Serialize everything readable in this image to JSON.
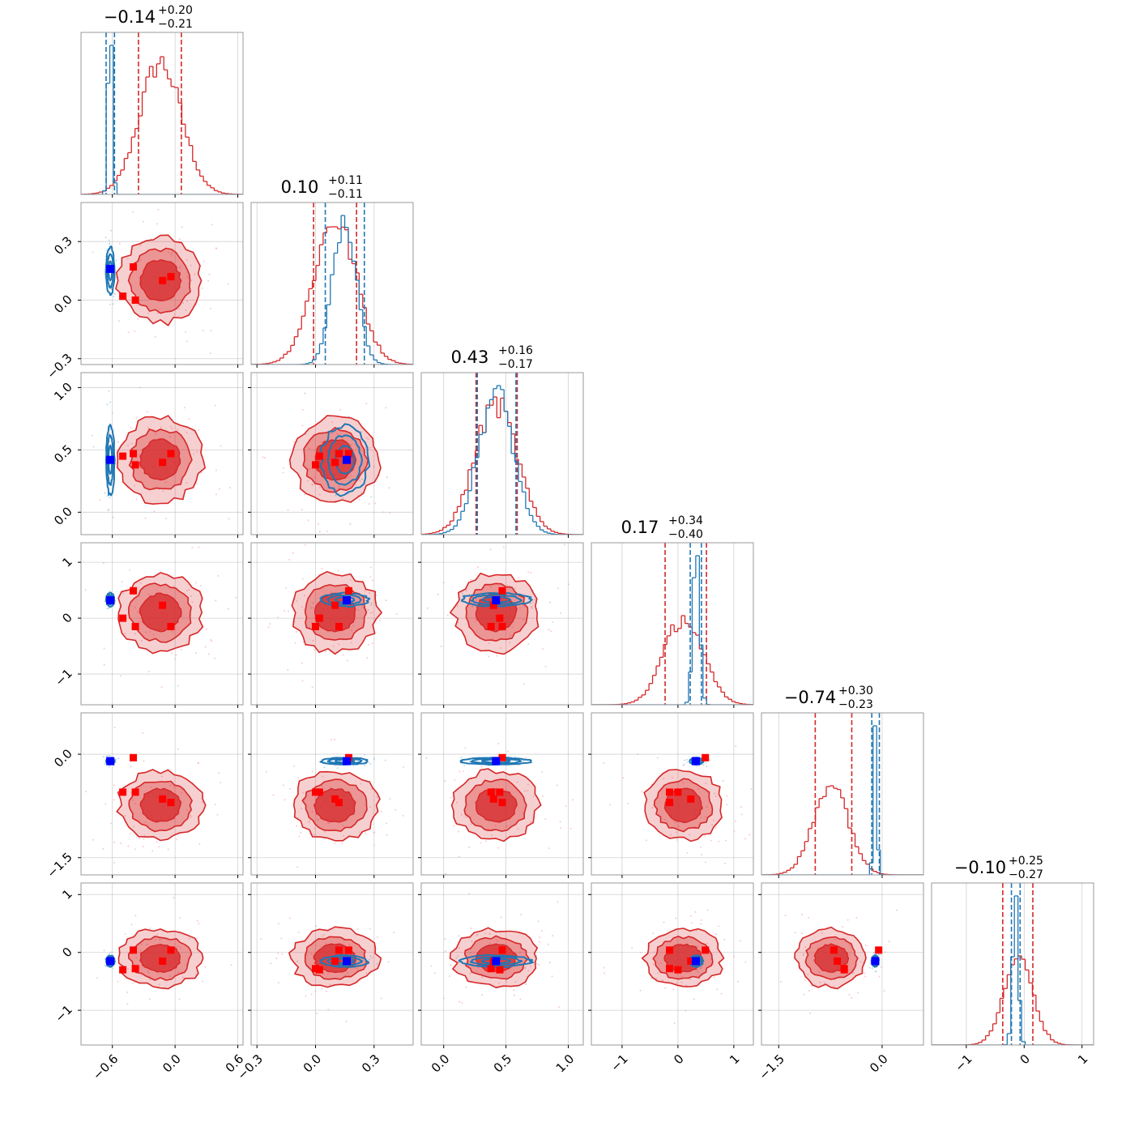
{
  "chart_data": {
    "type": "corner",
    "title": "",
    "n_params": 6,
    "grid": true,
    "colors": {
      "blue": "#1f77b4",
      "red": "#d62728",
      "marker_blue": "#0000ff",
      "marker_red": "#ff0000"
    },
    "diagonal_titles": [
      {
        "median": "−0.14",
        "plus": "+0.20",
        "minus": "−0.21"
      },
      {
        "median": "0.10",
        "plus": "+0.11",
        "minus": "−0.11"
      },
      {
        "median": "0.43",
        "plus": "+0.16",
        "minus": "−0.17"
      },
      {
        "median": "0.17",
        "plus": "+0.34",
        "minus": "−0.40"
      },
      {
        "median": "−0.74",
        "plus": "+0.30",
        "minus": "−0.23"
      },
      {
        "median": "−0.10",
        "plus": "+0.25",
        "minus": "−0.27"
      }
    ],
    "axes": [
      {
        "range": [
          -0.9,
          0.65
        ],
        "ticks": [
          -0.6,
          0.0,
          0.6
        ],
        "tick_labels": [
          "−0.6",
          "0.0",
          "0.6"
        ]
      },
      {
        "range": [
          -0.33,
          0.5
        ],
        "ticks": [
          -0.3,
          0.0,
          0.3
        ],
        "tick_labels": [
          "−0.3",
          "0.0",
          "0.3"
        ]
      },
      {
        "range": [
          -0.18,
          1.12
        ],
        "ticks": [
          0.0,
          0.5,
          1.0
        ],
        "tick_labels": [
          "0.0",
          "0.5",
          "1.0"
        ]
      },
      {
        "range": [
          -1.55,
          1.35
        ],
        "ticks": [
          -1,
          0,
          1
        ],
        "tick_labels": [
          "−1",
          "0",
          "1"
        ]
      },
      {
        "range": [
          -1.75,
          0.6
        ],
        "ticks": [
          -1.5,
          0.0
        ],
        "tick_labels": [
          "−1.5",
          "0.0"
        ]
      },
      {
        "range": [
          -1.6,
          1.2
        ],
        "ticks": [
          -1,
          0,
          1
        ],
        "tick_labels": [
          "−1",
          "0",
          "1"
        ]
      }
    ],
    "blue_posterior": {
      "mean": [
        -0.62,
        0.15,
        0.42,
        0.33,
        -0.1,
        -0.15
      ],
      "sd": [
        0.02,
        0.06,
        0.14,
        0.06,
        0.025,
        0.05
      ],
      "quantiles": [
        [
          -0.66,
          -0.58
        ],
        [
          0.05,
          0.25
        ],
        [
          0.27,
          0.58
        ],
        [
          0.22,
          0.42
        ],
        [
          -0.15,
          -0.04
        ],
        [
          -0.22,
          -0.07
        ]
      ]
    },
    "red_posterior": {
      "mean": [
        -0.14,
        0.1,
        0.42,
        0.1,
        -0.74,
        -0.1
      ],
      "sd": [
        0.2,
        0.11,
        0.17,
        0.35,
        0.25,
        0.25
      ],
      "quantiles": [
        [
          -0.35,
          0.06
        ],
        [
          -0.01,
          0.21
        ],
        [
          0.26,
          0.59
        ],
        [
          -0.23,
          0.51
        ],
        [
          -0.97,
          -0.44
        ],
        [
          -0.37,
          0.15
        ]
      ]
    },
    "blue_truth": [
      -0.62,
      0.16,
      0.42,
      0.32,
      -0.1,
      -0.15
    ],
    "red_markers": [
      [
        -0.4,
        0.17,
        0.47,
        0.49,
        -0.05,
        0.04
      ],
      [
        -0.5,
        0.02,
        0.45,
        0.0,
        -0.55,
        -0.3
      ],
      [
        -0.12,
        0.1,
        0.4,
        0.23,
        -0.65,
        -0.15
      ],
      [
        -0.04,
        0.12,
        0.47,
        -0.15,
        -0.7,
        0.04
      ],
      [
        -0.38,
        0.0,
        0.38,
        -0.15,
        -0.55,
        -0.28
      ]
    ]
  }
}
